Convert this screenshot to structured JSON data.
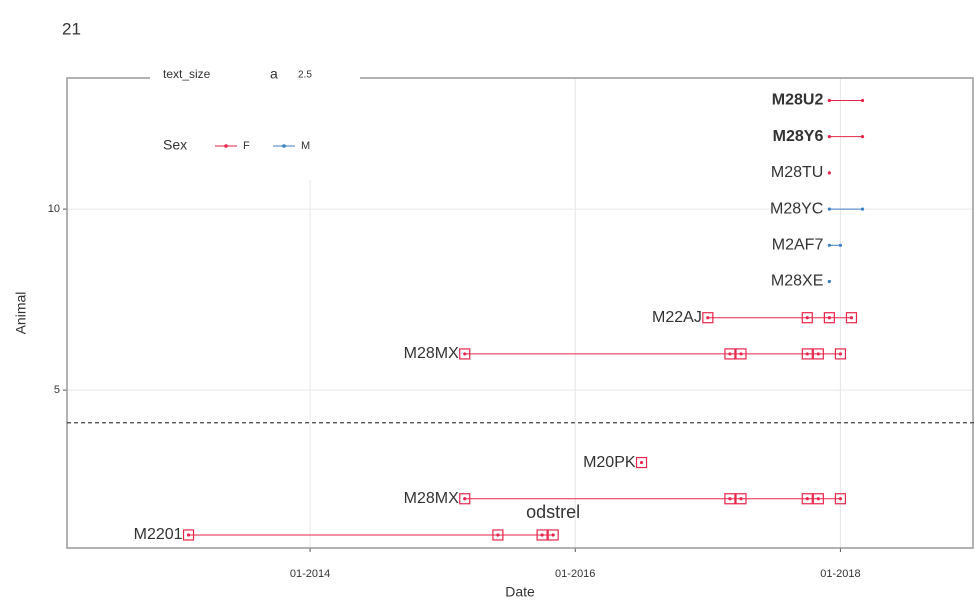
{
  "chart_data": {
    "type": "timeline",
    "title": "21",
    "x_label": "Date",
    "y_label": "Animal",
    "xlim": [
      "03-2012",
      "01-2019"
    ],
    "xticks": [
      "01-2014",
      "01-2016",
      "01-2018"
    ],
    "ylim": [
      0.64,
      13.62
    ],
    "yticks": [
      5,
      10
    ],
    "grid": true,
    "hline": 4.1,
    "legend": {
      "title": "Sex",
      "size_title": "text_size",
      "size_key": "a",
      "size_value": "2.5",
      "position": "top-left"
    },
    "sexes": [
      {
        "name": "F",
        "color": "#e8254a"
      },
      {
        "name": "M",
        "color": "#3a7fc4"
      }
    ],
    "annotation": {
      "text": "odstrel",
      "x": "11-2015",
      "y": 1.6
    },
    "animals": [
      {
        "name": "M2201",
        "y": 1,
        "sex": "F",
        "dates": [
          "02-2013",
          "06-2015",
          "10-2015",
          "11-2015"
        ]
      },
      {
        "name": "M28MX",
        "y": 2,
        "sex": "F",
        "dates": [
          "03-2015",
          "03-2017",
          "04-2017",
          "10-2017",
          "11-2017",
          "01-2018"
        ]
      },
      {
        "name": "M20PK",
        "y": 3,
        "sex": "F",
        "dates": [
          "07-2016"
        ]
      },
      {
        "name": "M28MX",
        "y": 6,
        "sex": "F",
        "dates": [
          "03-2015",
          "03-2017",
          "04-2017",
          "10-2017",
          "11-2017",
          "01-2018"
        ]
      },
      {
        "name": "M22AJ",
        "y": 7,
        "sex": "F",
        "dates": [
          "01-2017",
          "10-2017",
          "12-2017",
          "02-2018"
        ]
      },
      {
        "name": "M28XE",
        "y": 8,
        "sex": "M",
        "dates": [
          "12-2017"
        ]
      },
      {
        "name": "M2AF7",
        "y": 9,
        "sex": "M",
        "dates": [
          "12-2017",
          "01-2018"
        ]
      },
      {
        "name": "M28YC",
        "y": 10,
        "sex": "M",
        "dates": [
          "12-2017",
          "03-2018"
        ]
      },
      {
        "name": "M28TU",
        "y": 11,
        "sex": "F",
        "dates": [
          "12-2017"
        ]
      },
      {
        "name": "M28Y6",
        "y": 12,
        "sex": "F",
        "dates": [
          "12-2017",
          "03-2018"
        ]
      },
      {
        "name": "M28U2",
        "y": 13,
        "sex": "F",
        "dates": [
          "12-2017",
          "03-2018"
        ]
      }
    ]
  }
}
